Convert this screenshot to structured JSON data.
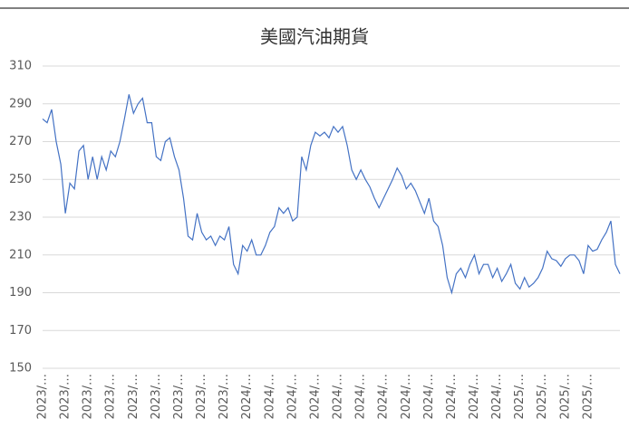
{
  "chart_data": {
    "type": "line",
    "title": "美國汽油期貨",
    "categories": [
      "2023/…",
      null,
      null,
      null,
      null,
      "2023/…",
      null,
      null,
      null,
      null,
      "2023/…",
      null,
      null,
      null,
      null,
      "2023/…",
      null,
      null,
      null,
      null,
      "2023/…",
      null,
      null,
      null,
      null,
      "2023/…",
      null,
      null,
      null,
      null,
      "2023/…",
      null,
      null,
      null,
      null,
      "2023/…",
      null,
      null,
      null,
      null,
      "2023/…",
      null,
      null,
      null,
      null,
      "2024/…",
      null,
      null,
      null,
      null,
      "2024/…",
      null,
      null,
      null,
      null,
      "2024/…",
      null,
      null,
      null,
      null,
      "2024/…",
      null,
      null,
      null,
      null,
      "2024/…",
      null,
      null,
      null,
      null,
      "2024/…",
      null,
      null,
      null,
      null,
      "2024/…",
      null,
      null,
      null,
      null,
      "2024/…",
      null,
      null,
      null,
      null,
      "2024/…",
      null,
      null,
      null,
      null,
      "2024/…",
      null,
      null,
      null,
      null,
      "2024/…",
      null,
      null,
      null,
      null,
      "2024/…",
      null,
      null,
      null,
      null,
      "2025/…",
      null,
      null,
      null,
      null,
      "2025/…",
      null,
      null,
      null,
      null,
      "2025/…",
      null,
      null,
      null,
      null,
      "2025/…",
      null,
      null,
      null,
      null,
      null,
      null,
      null
    ],
    "series": [
      {
        "color": "#4472c4",
        "values": [
          282,
          280,
          287,
          270,
          258,
          232,
          248,
          245,
          265,
          268,
          250,
          262,
          250,
          262,
          255,
          265,
          262,
          270,
          282,
          295,
          285,
          290,
          293,
          280,
          280,
          262,
          260,
          270,
          272,
          262,
          255,
          240,
          220,
          218,
          232,
          222,
          218,
          220,
          215,
          220,
          218,
          225,
          205,
          200,
          215,
          212,
          218,
          210,
          210,
          215,
          222,
          225,
          235,
          232,
          235,
          228,
          230,
          262,
          255,
          268,
          275,
          273,
          275,
          272,
          278,
          275,
          278,
          268,
          255,
          250,
          255,
          250,
          246,
          240,
          235,
          240,
          245,
          250,
          256,
          252,
          245,
          248,
          244,
          238,
          232,
          240,
          228,
          225,
          215,
          198,
          190,
          200,
          203,
          198,
          205,
          210,
          200,
          205,
          205,
          198,
          203,
          196,
          200,
          205,
          195,
          192,
          198,
          193,
          195,
          198,
          203,
          212,
          208,
          207,
          204,
          208,
          210,
          210,
          207,
          200,
          215,
          212,
          213,
          218,
          222,
          228,
          205,
          200
        ]
      }
    ],
    "ylim": [
      150,
      310
    ],
    "yticks": [
      150,
      170,
      190,
      210,
      230,
      250,
      270,
      290,
      310
    ],
    "grid": true
  }
}
